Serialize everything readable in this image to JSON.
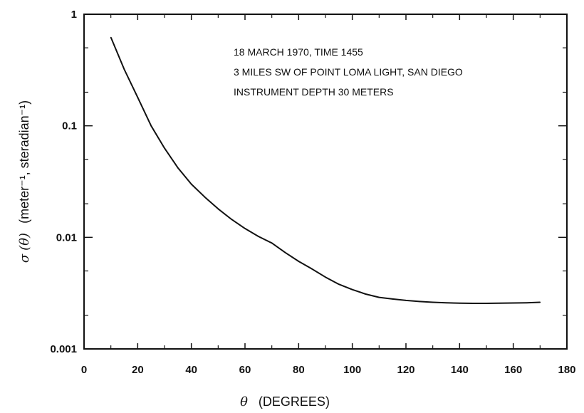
{
  "chart_data": {
    "type": "line",
    "title": "",
    "annotations": [
      "18 MARCH 1970,  TIME   1455",
      "3 MILES SW OF POINT LOMA LIGHT, SAN DIEGO",
      "INSTRUMENT DEPTH   30 METERS"
    ],
    "xlabel": {
      "symbol": "θ",
      "text": "(DEGREES)"
    },
    "ylabel": {
      "symbol": "σ",
      "arg": "(θ)",
      "text": "(meter⁻¹, steradian⁻¹)"
    },
    "xlim": [
      0,
      180
    ],
    "ylim": [
      0.001,
      1
    ],
    "y_scale": "log",
    "grid": false,
    "x_ticks": [
      "0",
      "20",
      "40",
      "60",
      "80",
      "100",
      "120",
      "140",
      "160",
      "180"
    ],
    "y_ticks": [
      "0.001",
      "0.01",
      "0.1",
      "1"
    ],
    "series": [
      {
        "x": [
          10,
          15,
          20,
          25,
          30,
          35,
          40,
          45,
          50,
          55,
          60,
          65,
          70,
          75,
          80,
          85,
          90,
          95,
          100,
          105,
          110,
          115,
          120,
          125,
          130,
          135,
          140,
          145,
          150,
          155,
          160,
          165,
          170
        ],
        "y": [
          0.62,
          0.32,
          0.18,
          0.1,
          0.063,
          0.042,
          0.03,
          0.023,
          0.018,
          0.0145,
          0.012,
          0.0102,
          0.0089,
          0.0073,
          0.0061,
          0.0052,
          0.0044,
          0.0038,
          0.0034,
          0.0031,
          0.0029,
          0.0028,
          0.00272,
          0.00266,
          0.00262,
          0.00259,
          0.00257,
          0.00256,
          0.00256,
          0.00257,
          0.00258,
          0.00259,
          0.00262
        ]
      }
    ]
  }
}
